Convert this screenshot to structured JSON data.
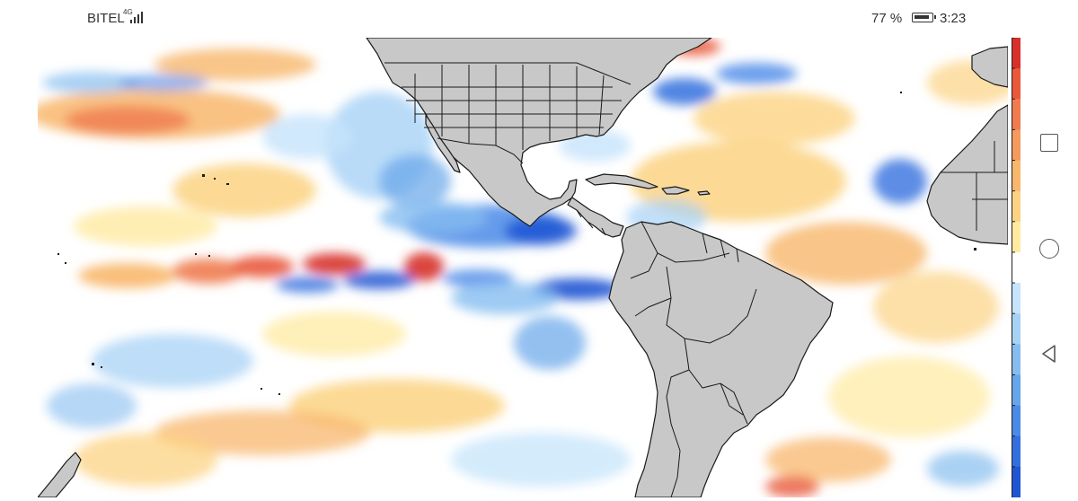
{
  "status_bar": {
    "carrier": "BITEL",
    "network": "4G",
    "battery_percent": "77 %",
    "time": "3:23"
  },
  "map": {
    "land_color": "#c8c8c8",
    "border_color": "#1a1a1a",
    "anomaly_colors": {
      "strong_cold": "#1f4fd8",
      "cold": "#4a8ae8",
      "weak_cold": "#b8d8f8",
      "neutral": "#ffffff",
      "weak_warm": "#fde9a8",
      "warm": "#f7b46b",
      "strong_warm": "#e0452e"
    }
  },
  "colorbar": {
    "colors": [
      "#d7302a",
      "#e9583b",
      "#f07b4f",
      "#f49a5e",
      "#f8b76c",
      "#fcd383",
      "#ffeaa0",
      "#ffffff",
      "#c6e4fb",
      "#a7d2f6",
      "#86bdf0",
      "#66a5ea",
      "#4a8ae8",
      "#3370de",
      "#1f55d3"
    ]
  },
  "nav_bar": {
    "recent_icon": "square-icon",
    "home_icon": "circle-icon",
    "back_icon": "triangle-back-icon"
  }
}
